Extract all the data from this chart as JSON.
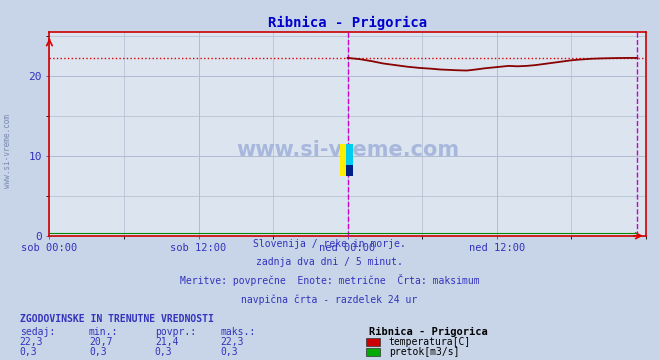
{
  "title": "Ribnica - Prigorica",
  "title_color": "#0000cc",
  "bg_color": "#c8d4e8",
  "plot_bg_color": "#dce4f0",
  "grid_color": "#b0bcd0",
  "x_ticks_labels": [
    "sob 00:00",
    "sob 12:00",
    "ned 00:00",
    "ned 12:00"
  ],
  "x_ticks_positions": [
    0.0,
    0.25,
    0.5,
    0.75
  ],
  "y_ticks": [
    0,
    10,
    20
  ],
  "ylim": [
    0,
    25.5
  ],
  "xlim": [
    0,
    1
  ],
  "max_line_y": 22.3,
  "max_line_color": "#dd0000",
  "nav_line_x": 0.5,
  "nav_line_color": "#cc00cc",
  "end_line_x": 0.985,
  "end_line_color": "#cc00cc",
  "border_color": "#cc0000",
  "axis_color": "#3333bb",
  "tick_color": "#3333bb",
  "temp_color": "#880000",
  "flow_color": "#008800",
  "watermark_color": "#1a3a8a",
  "subtitle_lines": [
    "Slovenija / reke in morje.",
    "zadnja dva dni / 5 minut.",
    "Meritve: povprečne  Enote: metrične  Črta: maksimum",
    "navpična črta - razdelek 24 ur"
  ],
  "table_header": "ZGODOVINSKE IN TRENUTNE VREDNOSTI",
  "col_headers": [
    "sedaj:",
    "min.:",
    "povpr.:",
    "maks.:"
  ],
  "row1_values": [
    "22,3",
    "20,7",
    "21,4",
    "22,3"
  ],
  "row2_values": [
    "0,3",
    "0,3",
    "0,3",
    "0,3"
  ],
  "legend_title": "Ribnica - Prigorica",
  "legend_items": [
    "temperatura[C]",
    "pretok[m3/s]"
  ],
  "legend_colors": [
    "#cc0000",
    "#00aa00"
  ],
  "temp_data_x": [
    0.5,
    0.52,
    0.54,
    0.56,
    0.58,
    0.6,
    0.62,
    0.64,
    0.655,
    0.67,
    0.685,
    0.7,
    0.715,
    0.73,
    0.75,
    0.77,
    0.785,
    0.8,
    0.815,
    0.83,
    0.845,
    0.86,
    0.875,
    0.89,
    0.91,
    0.93,
    0.95,
    0.97,
    0.985
  ],
  "temp_data_y": [
    22.3,
    22.15,
    21.9,
    21.6,
    21.4,
    21.2,
    21.05,
    20.95,
    20.85,
    20.8,
    20.75,
    20.72,
    20.85,
    21.0,
    21.15,
    21.3,
    21.25,
    21.3,
    21.4,
    21.55,
    21.7,
    21.85,
    22.0,
    22.1,
    22.2,
    22.25,
    22.28,
    22.3,
    22.3
  ]
}
